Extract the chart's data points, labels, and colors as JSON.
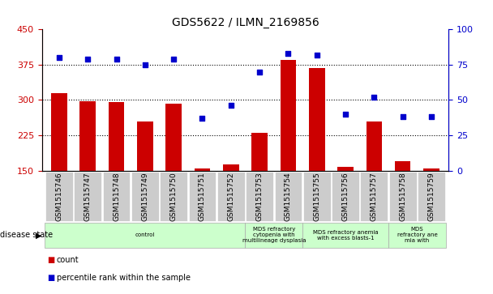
{
  "title": "GDS5622 / ILMN_2169856",
  "samples": [
    "GSM1515746",
    "GSM1515747",
    "GSM1515748",
    "GSM1515749",
    "GSM1515750",
    "GSM1515751",
    "GSM1515752",
    "GSM1515753",
    "GSM1515754",
    "GSM1515755",
    "GSM1515756",
    "GSM1515757",
    "GSM1515758",
    "GSM1515759"
  ],
  "counts": [
    315,
    298,
    295,
    255,
    292,
    155,
    163,
    230,
    385,
    368,
    158,
    255,
    170,
    155
  ],
  "percentiles": [
    80,
    79,
    79,
    75,
    79,
    37,
    46,
    70,
    83,
    82,
    40,
    52,
    38,
    38
  ],
  "ylim_left": [
    150,
    450
  ],
  "ylim_right": [
    0,
    100
  ],
  "yticks_left": [
    150,
    225,
    300,
    375,
    450
  ],
  "yticks_right": [
    0,
    25,
    50,
    75,
    100
  ],
  "bar_color": "#cc0000",
  "dot_color": "#0000cc",
  "bar_width": 0.55,
  "disease_groups": [
    {
      "label": "control",
      "start": 0,
      "end": 6
    },
    {
      "label": "MDS refractory\ncytopenia with\nmultilineage dysplasia",
      "start": 7,
      "end": 8
    },
    {
      "label": "MDS refractory anemia\nwith excess blasts-1",
      "start": 9,
      "end": 11
    },
    {
      "label": "MDS\nrefractory ane\nmia with",
      "start": 12,
      "end": 13
    }
  ],
  "grid_lines": [
    225,
    300,
    375
  ],
  "background_color": "#ffffff",
  "disease_state_label": "disease state",
  "tick_bg_color": "#cccccc",
  "group_color": "#ccffcc",
  "group_edge_color": "#aaaaaa"
}
